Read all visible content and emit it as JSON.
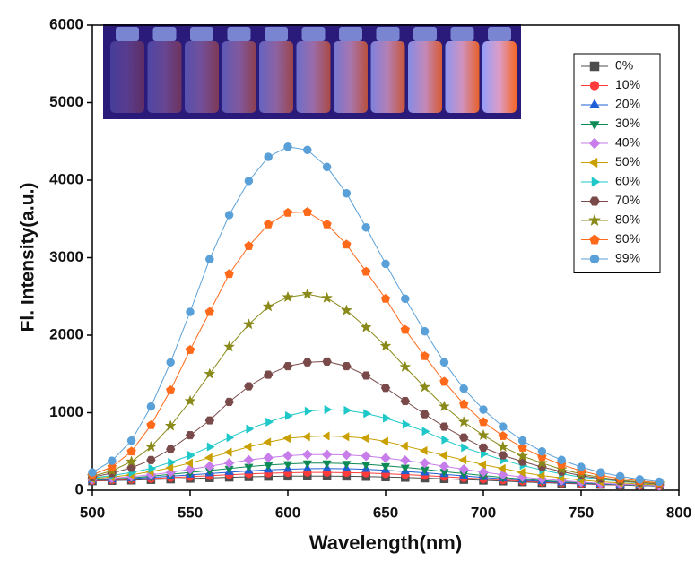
{
  "chart_data": {
    "type": "line",
    "xlabel": "Wavelength(nm)",
    "ylabel": "Fl. Intensity(a.u.)",
    "x": [
      500,
      510,
      520,
      530,
      540,
      550,
      560,
      570,
      580,
      590,
      600,
      610,
      620,
      630,
      640,
      650,
      660,
      670,
      680,
      690,
      700,
      710,
      720,
      730,
      740,
      750,
      760,
      770,
      780,
      790
    ],
    "xlim": [
      500,
      800
    ],
    "xticks": [
      500,
      550,
      600,
      650,
      700,
      750,
      800
    ],
    "ylim": [
      0,
      6000
    ],
    "yticks": [
      0,
      1000,
      2000,
      3000,
      4000,
      5000,
      6000
    ],
    "legend": "upper right",
    "series": [
      {
        "name": "0%",
        "color": "#4d4d4d",
        "marker": "square",
        "values": [
          120,
          125,
          130,
          137,
          144,
          152,
          160,
          167,
          173,
          178,
          181,
          182,
          182,
          180,
          176,
          171,
          164,
          156,
          147,
          138,
          128,
          118,
          108,
          98,
          90,
          82,
          74,
          66,
          60,
          54
        ]
      },
      {
        "name": "10%",
        "color": "#ff3b3b",
        "marker": "circle",
        "values": [
          125,
          132,
          140,
          150,
          162,
          175,
          188,
          200,
          212,
          220,
          226,
          230,
          230,
          227,
          222,
          213,
          202,
          190,
          175,
          160,
          145,
          132,
          118,
          105,
          95,
          85,
          76,
          68,
          60,
          54
        ]
      },
      {
        "name": "20%",
        "color": "#1f5fd6",
        "marker": "triangle-up",
        "values": [
          130,
          138,
          150,
          165,
          180,
          198,
          215,
          232,
          248,
          262,
          272,
          278,
          280,
          277,
          270,
          258,
          242,
          225,
          205,
          185,
          165,
          148,
          130,
          115,
          100,
          90,
          80,
          70,
          62,
          55
        ]
      },
      {
        "name": "30%",
        "color": "#0d8a55",
        "marker": "triangle-down",
        "values": [
          135,
          145,
          160,
          180,
          205,
          230,
          255,
          280,
          305,
          325,
          340,
          350,
          350,
          345,
          335,
          315,
          295,
          270,
          240,
          215,
          190,
          165,
          145,
          125,
          110,
          95,
          85,
          75,
          65,
          58
        ]
      },
      {
        "name": "40%",
        "color": "#c77dea",
        "marker": "diamond",
        "values": [
          140,
          155,
          175,
          200,
          230,
          270,
          310,
          350,
          390,
          420,
          445,
          460,
          460,
          455,
          440,
          415,
          385,
          350,
          310,
          270,
          235,
          200,
          170,
          145,
          125,
          105,
          90,
          80,
          70,
          60
        ]
      },
      {
        "name": "50%",
        "color": "#c9a000",
        "marker": "triangle-left",
        "values": [
          150,
          170,
          200,
          240,
          290,
          350,
          420,
          490,
          560,
          620,
          670,
          690,
          700,
          690,
          670,
          630,
          570,
          510,
          450,
          390,
          330,
          280,
          230,
          190,
          160,
          130,
          110,
          95,
          80,
          70
        ]
      },
      {
        "name": "60%",
        "color": "#1ec8c8",
        "marker": "triangle-right",
        "values": [
          160,
          190,
          230,
          280,
          360,
          450,
          560,
          680,
          790,
          880,
          960,
          1020,
          1040,
          1030,
          990,
          930,
          850,
          760,
          650,
          550,
          470,
          390,
          320,
          260,
          210,
          170,
          140,
          115,
          95,
          80
        ]
      },
      {
        "name": "70%",
        "color": "#7a4a4a",
        "marker": "hexagon",
        "values": [
          170,
          220,
          290,
          390,
          530,
          710,
          900,
          1140,
          1340,
          1490,
          1600,
          1650,
          1660,
          1600,
          1480,
          1320,
          1150,
          980,
          820,
          680,
          550,
          450,
          370,
          300,
          240,
          190,
          150,
          120,
          100,
          80
        ]
      },
      {
        "name": "80%",
        "color": "#8a8a1a",
        "marker": "star",
        "values": [
          180,
          250,
          370,
          560,
          830,
          1150,
          1500,
          1850,
          2140,
          2370,
          2490,
          2530,
          2480,
          2320,
          2100,
          1860,
          1590,
          1330,
          1080,
          880,
          710,
          560,
          440,
          350,
          270,
          210,
          165,
          130,
          105,
          85
        ]
      },
      {
        "name": "90%",
        "color": "#ff6a1a",
        "marker": "pentagon",
        "values": [
          200,
          300,
          500,
          840,
          1290,
          1810,
          2300,
          2790,
          3150,
          3430,
          3580,
          3590,
          3430,
          3170,
          2820,
          2470,
          2070,
          1730,
          1400,
          1110,
          880,
          700,
          550,
          430,
          330,
          250,
          190,
          150,
          120,
          95
        ]
      },
      {
        "name": "99%",
        "color": "#5aa0d8",
        "marker": "circle",
        "values": [
          230,
          380,
          640,
          1080,
          1650,
          2300,
          2980,
          3550,
          3990,
          4300,
          4430,
          4390,
          4170,
          3830,
          3390,
          2920,
          2470,
          2050,
          1650,
          1310,
          1040,
          820,
          640,
          500,
          390,
          300,
          230,
          180,
          140,
          110
        ]
      }
    ]
  }
}
